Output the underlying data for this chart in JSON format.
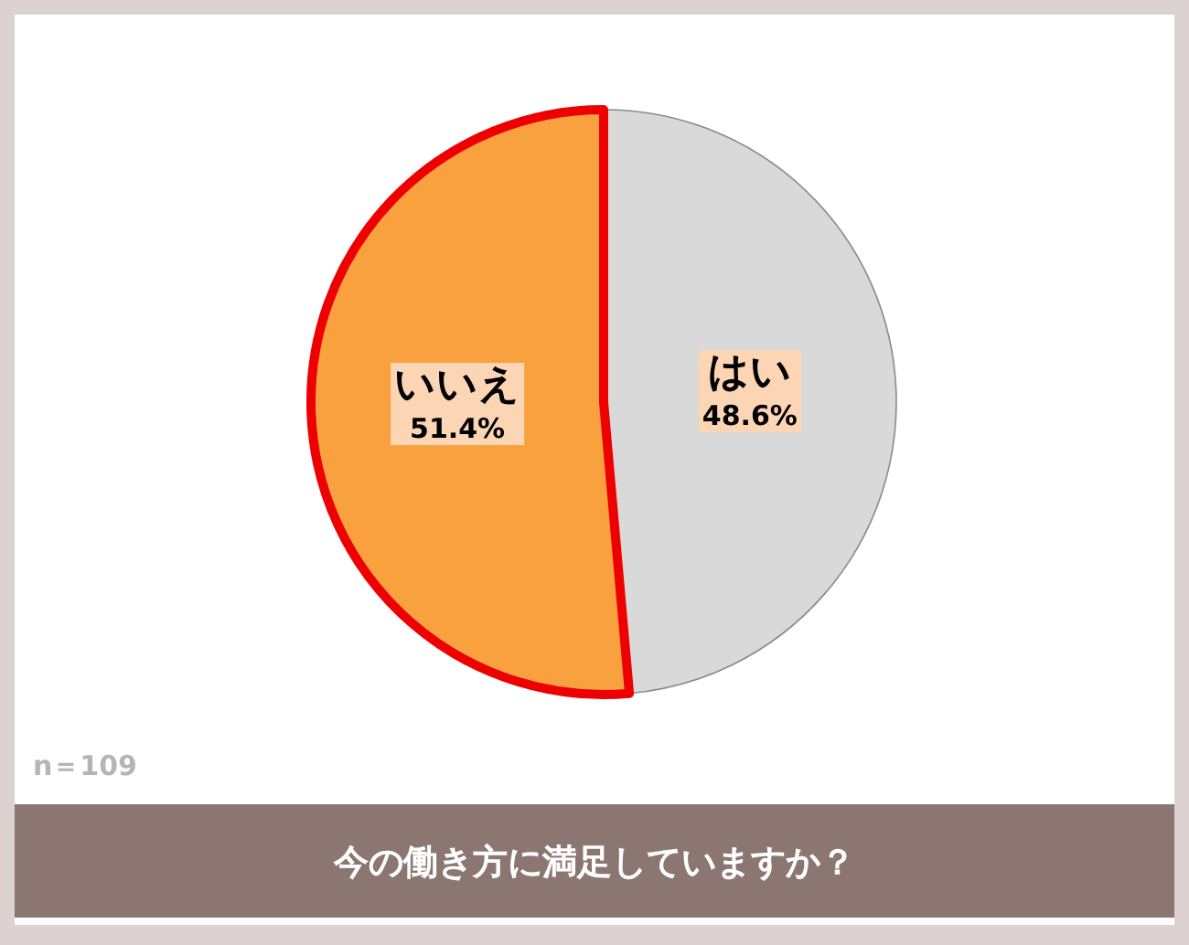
{
  "chart_data": {
    "type": "pie",
    "title": "今の働き方に満足していますか？",
    "categories": [
      "はい",
      "いいえ"
    ],
    "values": [
      48.6,
      51.4
    ],
    "colors": [
      "#d9d9d9",
      "#f9a13f"
    ],
    "value_labels": [
      "48.6%",
      "51.4%"
    ],
    "annotations": [
      "n＝109"
    ]
  }
}
